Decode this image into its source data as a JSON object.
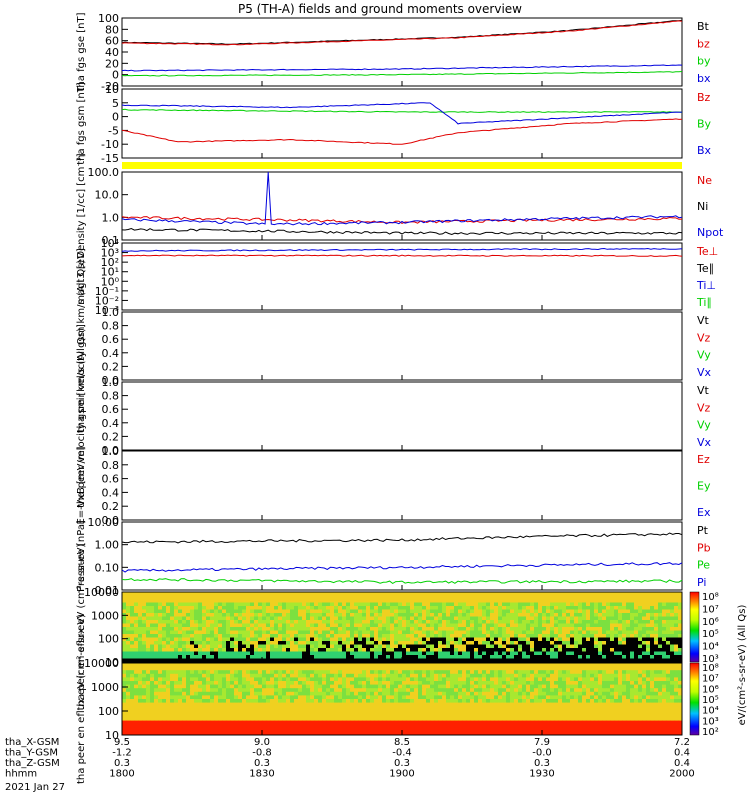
{
  "title": "P5 (TH-A) fields and ground moments overview",
  "colors": {
    "black": "#000000",
    "red": "#e00000",
    "green": "#00d000",
    "blue": "#0000dd",
    "yellow": "#ffff00"
  },
  "x_axis": {
    "ticks": [
      "1800",
      "1830",
      "1900",
      "1930",
      "2000"
    ],
    "rows": [
      {
        "label": "tha_X-GSM",
        "values": [
          "9.5",
          "9.0",
          "8.5",
          "7.9",
          "7.2"
        ]
      },
      {
        "label": "tha_Y-GSM",
        "values": [
          "-1.2",
          "-0.8",
          "-0.4",
          "-0.0",
          "0.4"
        ]
      },
      {
        "label": "tha_Z-GSM",
        "values": [
          "0.3",
          "0.3",
          "0.3",
          "0.3",
          "0.4"
        ]
      },
      {
        "label": "hhmm",
        "values": [
          "1800",
          "1830",
          "1900",
          "1930",
          "2000"
        ]
      }
    ],
    "date": "2021 Jan 27"
  },
  "colorbar": {
    "ticks": [
      "10⁸",
      "10⁷",
      "10⁶",
      "10⁵",
      "10⁴",
      "10³"
    ],
    "ticks2": [
      "10⁸",
      "10⁷",
      "10⁶",
      "10⁵",
      "10⁴",
      "10³",
      "10²"
    ],
    "label": "eV/(cm²-s-sr-eV) (All Qs)"
  },
  "chart_data": [
    {
      "type": "line",
      "ylabel": "tha fgs gse [nT]",
      "ylim": [
        -20,
        100
      ],
      "yticks": [
        "100",
        "80",
        "60",
        "40",
        "20",
        "0",
        "-20"
      ],
      "legend": [
        {
          "name": "Bt",
          "color": "black"
        },
        {
          "name": "bz",
          "color": "red"
        },
        {
          "name": "by",
          "color": "green"
        },
        {
          "name": "bx",
          "color": "blue"
        }
      ],
      "series": [
        {
          "name": "Bt",
          "x": [
            0,
            0.2,
            0.4,
            0.6,
            0.8,
            1
          ],
          "y": [
            57,
            54,
            60,
            66,
            78,
            96
          ]
        },
        {
          "name": "bz",
          "x": [
            0,
            0.2,
            0.4,
            0.6,
            0.8,
            1
          ],
          "y": [
            56,
            53,
            59,
            65,
            77,
            95
          ]
        },
        {
          "name": "by",
          "x": [
            0,
            0.5,
            1
          ],
          "y": [
            -2,
            0,
            5
          ]
        },
        {
          "name": "bx",
          "x": [
            0,
            0.5,
            1
          ],
          "y": [
            7,
            10,
            17
          ]
        }
      ]
    },
    {
      "type": "line",
      "ylabel": "tha fgs gsm [nT]",
      "ylim": [
        -20,
        10
      ],
      "yticks": [
        "10",
        "5",
        "0",
        "-5",
        "-10",
        "-15"
      ],
      "legend": [
        {
          "name": "Bz",
          "color": "red"
        },
        {
          "name": "By",
          "color": "green"
        },
        {
          "name": "Bx",
          "color": "blue"
        }
      ],
      "series": [
        {
          "name": "Bz",
          "x": [
            0,
            0.1,
            0.3,
            0.5,
            0.6,
            0.8,
            1
          ],
          "y": [
            -8,
            -13,
            -12,
            -14,
            -9,
            -5,
            -3
          ]
        },
        {
          "name": "By",
          "x": [
            0,
            0.5,
            1
          ],
          "y": [
            1,
            0,
            0
          ]
        },
        {
          "name": "Bx",
          "x": [
            0,
            0.3,
            0.55,
            0.6,
            1
          ],
          "y": [
            3,
            2,
            4,
            -5,
            0
          ]
        }
      ]
    },
    {
      "type": "line",
      "ylabel": "Density [1/cc] [cm⁻³]",
      "yscale": "log",
      "yticks": [
        "100.0",
        "10.0",
        "1.0",
        "0.1"
      ],
      "legend": [
        {
          "name": "Ne",
          "color": "red"
        },
        {
          "name": "Ni",
          "color": "black"
        },
        {
          "name": "Npot",
          "color": "blue"
        }
      ],
      "series": [
        {
          "name": "Ne",
          "x": [
            0,
            0.5,
            1
          ],
          "y": [
            1.0,
            0.6,
            0.9
          ]
        },
        {
          "name": "Ni",
          "x": [
            0,
            0.5,
            1
          ],
          "y": [
            0.3,
            0.2,
            0.2
          ]
        },
        {
          "name": "Npot",
          "x": [
            0,
            0.26,
            0.262,
            0.264,
            0.5,
            1
          ],
          "y": [
            0.8,
            0.5,
            200,
            0.5,
            0.6,
            1.1
          ]
        }
      ]
    },
    {
      "type": "line",
      "ylabel": "magt3 [eV]",
      "yscale": "log",
      "yticks": [
        "10⁴",
        "10³",
        "10²",
        "10¹",
        "10⁰",
        "10⁻¹",
        "10⁻²",
        "10⁻³"
      ],
      "legend": [
        {
          "name": "Te⊥",
          "color": "red"
        },
        {
          "name": "Te∥",
          "color": "black"
        },
        {
          "name": "Ti⊥",
          "color": "blue"
        },
        {
          "name": "Ti∥",
          "color": "green"
        }
      ],
      "series": [
        {
          "name": "Te⊥",
          "x": [
            0,
            1
          ],
          "y": [
            500,
            450
          ]
        },
        {
          "name": "Ti⊥",
          "x": [
            0,
            1
          ],
          "y": [
            1500,
            2500
          ]
        }
      ]
    },
    {
      "type": "line",
      "ylabel": "tha peir velocity gsm km/s (All Qs)",
      "ylim": [
        0,
        1
      ],
      "yticks": [
        "1.0",
        "0.8",
        "0.6",
        "0.4",
        "0.2",
        "0.0"
      ],
      "legend": [
        {
          "name": "Vt",
          "color": "black"
        },
        {
          "name": "Vz",
          "color": "red"
        },
        {
          "name": "Vy",
          "color": "green"
        },
        {
          "name": "Vx",
          "color": "blue"
        }
      ],
      "series": []
    },
    {
      "type": "line",
      "ylabel": "tha peer velocity gsm [km/s (All Qs)]",
      "ylim": [
        0,
        1
      ],
      "yticks": [
        "1.0",
        "0.8",
        "0.6",
        "0.4",
        "0.2",
        "0.0"
      ],
      "legend": [
        {
          "name": "Vt",
          "color": "black"
        },
        {
          "name": "Vz",
          "color": "red"
        },
        {
          "name": "Vy",
          "color": "green"
        },
        {
          "name": "Vx",
          "color": "blue"
        }
      ],
      "series": []
    },
    {
      "type": "line",
      "ylabel": "E=-VxB [mV/m]",
      "ylim": [
        0,
        1
      ],
      "yticks": [
        "1.0",
        "0.8",
        "0.6",
        "0.4",
        "0.2",
        "0.0"
      ],
      "legend": [
        {
          "name": "Ez",
          "color": "red"
        },
        {
          "name": "Ey",
          "color": "green"
        },
        {
          "name": "Ex",
          "color": "blue"
        }
      ],
      "series": []
    },
    {
      "type": "line",
      "ylabel": "Pressure [nPa]",
      "yscale": "log",
      "yticks": [
        "10.00",
        "1.00",
        "0.10",
        "0.01"
      ],
      "legend": [
        {
          "name": "Pt",
          "color": "black"
        },
        {
          "name": "Pb",
          "color": "red"
        },
        {
          "name": "Pe",
          "color": "green"
        },
        {
          "name": "Pi",
          "color": "blue"
        }
      ],
      "series": [
        {
          "name": "Pt",
          "x": [
            0,
            0.5,
            1
          ],
          "y": [
            1.3,
            1.6,
            3.0
          ]
        },
        {
          "name": "Pi",
          "x": [
            0,
            0.5,
            1
          ],
          "y": [
            0.07,
            0.1,
            0.15
          ]
        },
        {
          "name": "Pe",
          "x": [
            0,
            0.5,
            1
          ],
          "y": [
            0.03,
            0.022,
            0.025
          ]
        }
      ]
    },
    {
      "type": "heatmap",
      "ylabel": "tha peir en eflux eV (cm²-s-sr-eV)",
      "yscale": "log",
      "yticks": [
        "10000",
        "1000",
        "100",
        "10"
      ]
    },
    {
      "type": "heatmap",
      "ylabel": "tha peer en eflux eV (cm²-s-sr-eV)",
      "yscale": "log",
      "yticks": [
        "10000",
        "1000",
        "100",
        "10"
      ]
    }
  ]
}
